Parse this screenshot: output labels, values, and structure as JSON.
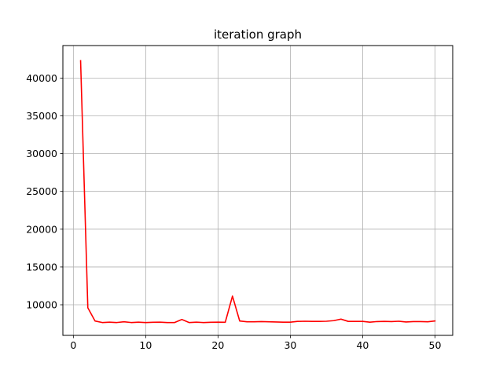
{
  "chart_data": {
    "type": "line",
    "title": "iteration graph",
    "xlabel": "",
    "ylabel": "",
    "xlim": [
      -1.45,
      52.45
    ],
    "ylim": [
      5950,
      44300
    ],
    "xticks": [
      0,
      10,
      20,
      30,
      40,
      50
    ],
    "yticks": [
      10000,
      15000,
      20000,
      25000,
      30000,
      35000,
      40000
    ],
    "grid": true,
    "legend": "none",
    "series": [
      {
        "color": "#ff0000",
        "x": [
          1,
          2,
          3,
          4,
          5,
          6,
          7,
          8,
          9,
          10,
          11,
          12,
          13,
          14,
          15,
          16,
          17,
          18,
          19,
          20,
          21,
          22,
          23,
          24,
          25,
          26,
          27,
          28,
          29,
          30,
          31,
          32,
          33,
          34,
          35,
          36,
          37,
          38,
          39,
          40,
          41,
          42,
          43,
          44,
          45,
          46,
          47,
          48,
          49,
          50
        ],
        "y": [
          42300,
          9600,
          7850,
          7650,
          7700,
          7650,
          7750,
          7650,
          7700,
          7650,
          7680,
          7700,
          7650,
          7650,
          8050,
          7650,
          7700,
          7650,
          7680,
          7700,
          7680,
          11150,
          7850,
          7750,
          7750,
          7780,
          7750,
          7720,
          7700,
          7700,
          7800,
          7820,
          7800,
          7800,
          7820,
          7900,
          8100,
          7800,
          7800,
          7800,
          7700,
          7780,
          7800,
          7780,
          7820,
          7720,
          7780,
          7780,
          7750,
          7860
        ]
      }
    ]
  }
}
